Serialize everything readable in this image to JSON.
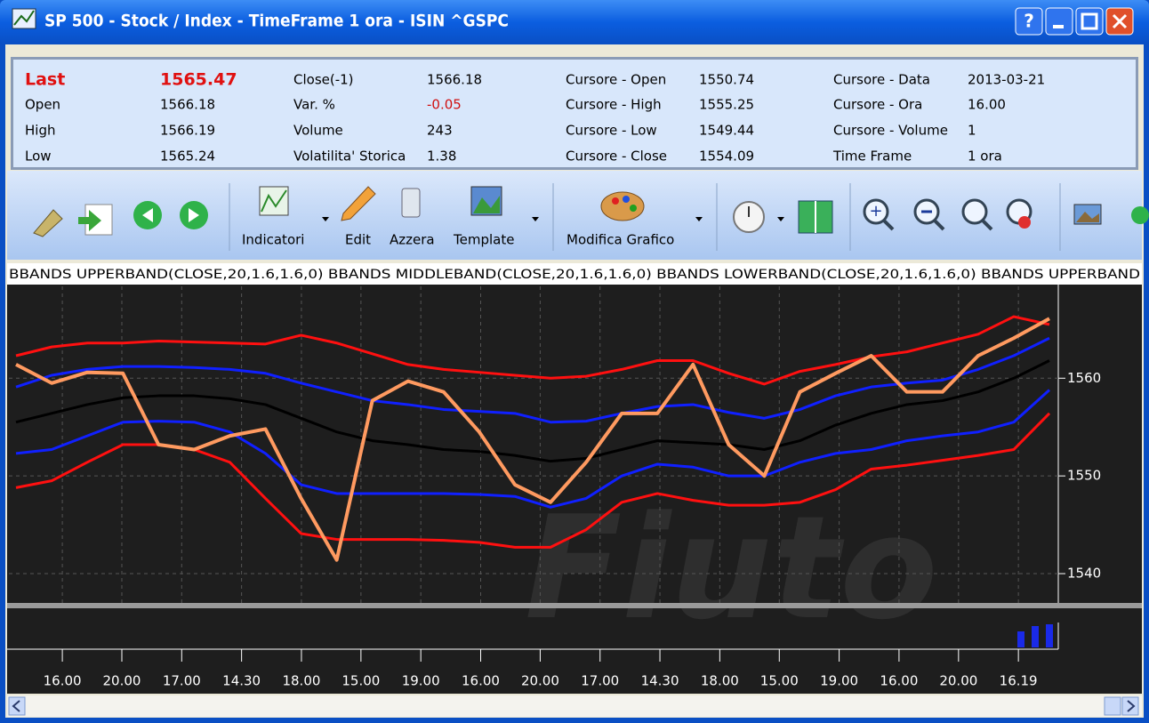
{
  "window": {
    "title": "SP 500 - Stock / Index - TimeFrame 1 ora - ISIN ^GSPC"
  },
  "info": {
    "rows": [
      [
        "Last",
        "1565.47",
        "Close(-1)",
        "1566.18",
        "Cursore - Open",
        "1550.74",
        "Cursore - Data",
        "2013-03-21"
      ],
      [
        "Open",
        "1566.18",
        "Var. %",
        "-0.05",
        "Cursore - High",
        "1555.25",
        "Cursore - Ora",
        "16.00"
      ],
      [
        "High",
        "1566.19",
        "Volume",
        "243",
        "Cursore - Low",
        "1549.44",
        "Cursore - Volume",
        "1"
      ],
      [
        "Low",
        "1565.24",
        "Volatilita' Storica",
        "1.38",
        "Cursore - Close",
        "1554.09",
        "Time Frame",
        "1 ora"
      ]
    ]
  },
  "toolbar": {
    "labels": [
      "Indicatori",
      "Edit",
      "Azzera",
      "Template",
      "Modifica Grafico"
    ]
  },
  "chart_data": {
    "type": "line",
    "legend_text": "BBANDS UPPERBAND(CLOSE,20,1.6,1.6,0) BBANDS MIDDLEBAND(CLOSE,20,1.6,1.6,0) BBANDS LOWERBAND(CLOSE,20,1.6,1.6,0) BBANDS UPPERBAND",
    "x": [
      0,
      1,
      2,
      3,
      4,
      5,
      6,
      7,
      8,
      9,
      10,
      11,
      12,
      13,
      14,
      15,
      16,
      17,
      18,
      19,
      20,
      21,
      22,
      23,
      24,
      25,
      26,
      27,
      28,
      29
    ],
    "xlim": [
      0,
      29
    ],
    "xticks": [
      {
        "value": 1.3,
        "label": "16.00"
      },
      {
        "value": 2.97,
        "label": "20.00"
      },
      {
        "value": 4.65,
        "label": "17.00"
      },
      {
        "value": 6.33,
        "label": "14.30"
      },
      {
        "value": 8.01,
        "label": "18.00"
      },
      {
        "value": 9.68,
        "label": "15.00"
      },
      {
        "value": 11.36,
        "label": "19.00"
      },
      {
        "value": 13.04,
        "label": "16.00"
      },
      {
        "value": 14.71,
        "label": "20.00"
      },
      {
        "value": 16.39,
        "label": "17.00"
      },
      {
        "value": 18.07,
        "label": "14.30"
      },
      {
        "value": 19.75,
        "label": "18.00"
      },
      {
        "value": 21.42,
        "label": "15.00"
      },
      {
        "value": 23.1,
        "label": "19.00"
      },
      {
        "value": 24.78,
        "label": "16.00"
      },
      {
        "value": 26.45,
        "label": "20.00"
      },
      {
        "value": 28.13,
        "label": "16.19"
      }
    ],
    "ylim": [
      1537,
      1569.4
    ],
    "yticks": [
      1540,
      1550,
      1560
    ],
    "grid": true,
    "series": [
      {
        "color": "#ff1010",
        "values": [
          1562.3,
          1563.2,
          1563.6,
          1563.6,
          1563.8,
          1563.7,
          1563.6,
          1563.5,
          1564.4,
          1563.6,
          1562.5,
          1561.4,
          1560.9,
          1560.6,
          1560.3,
          1560.0,
          1560.2,
          1560.9,
          1561.8,
          1561.8,
          1560.5,
          1559.4,
          1560.7,
          1561.4,
          1562.2,
          1562.7,
          1563.6,
          1564.5,
          1566.3,
          1565.5
        ]
      },
      {
        "color": "#1020ff",
        "values": [
          1559.1,
          1560.3,
          1560.9,
          1561.2,
          1561.2,
          1561.1,
          1560.9,
          1560.5,
          1559.5,
          1558.6,
          1557.7,
          1557.3,
          1556.8,
          1556.6,
          1556.4,
          1555.5,
          1555.6,
          1556.4,
          1557.1,
          1557.3,
          1556.5,
          1555.9,
          1556.8,
          1558.2,
          1559.1,
          1559.5,
          1559.8,
          1560.9,
          1562.3,
          1564.1
        ]
      },
      {
        "color": "#000000",
        "values": [
          1555.5,
          1556.4,
          1557.3,
          1558.0,
          1558.2,
          1558.2,
          1557.9,
          1557.3,
          1555.9,
          1554.5,
          1553.6,
          1553.2,
          1552.7,
          1552.5,
          1552.1,
          1551.5,
          1551.8,
          1552.7,
          1553.6,
          1553.4,
          1553.2,
          1552.7,
          1553.6,
          1555.2,
          1556.4,
          1557.3,
          1557.7,
          1558.6,
          1560.0,
          1561.8
        ]
      },
      {
        "color": "#1020ff",
        "values": [
          1552.3,
          1552.7,
          1554.1,
          1555.5,
          1555.6,
          1555.5,
          1554.5,
          1552.3,
          1549.1,
          1548.2,
          1548.2,
          1548.2,
          1548.2,
          1548.1,
          1547.9,
          1546.8,
          1547.7,
          1550.0,
          1551.2,
          1550.9,
          1550.0,
          1550.0,
          1551.4,
          1552.3,
          1552.7,
          1553.6,
          1554.1,
          1554.5,
          1555.5,
          1558.8
        ]
      },
      {
        "color": "#ff1010",
        "values": [
          1548.8,
          1549.5,
          1551.4,
          1553.2,
          1553.2,
          1552.7,
          1551.4,
          1547.7,
          1544.1,
          1543.5,
          1543.5,
          1543.5,
          1543.4,
          1543.2,
          1542.7,
          1542.7,
          1544.5,
          1547.3,
          1548.2,
          1547.5,
          1547.0,
          1547.0,
          1547.3,
          1548.6,
          1550.7,
          1551.1,
          1551.6,
          1552.1,
          1552.7,
          1556.4
        ]
      },
      {
        "color": "#ff9a60",
        "values": [
          1561.4,
          1559.5,
          1560.6,
          1560.5,
          1553.2,
          1552.7,
          1554.1,
          1554.8,
          1547.7,
          1541.4,
          1557.7,
          1559.7,
          1558.6,
          1554.5,
          1549.1,
          1547.3,
          1551.4,
          1556.4,
          1556.4,
          1561.4,
          1553.2,
          1550.0,
          1558.6,
          1560.5,
          1562.3,
          1558.6,
          1558.6,
          1562.3,
          1564.1,
          1566.1
        ]
      }
    ]
  }
}
